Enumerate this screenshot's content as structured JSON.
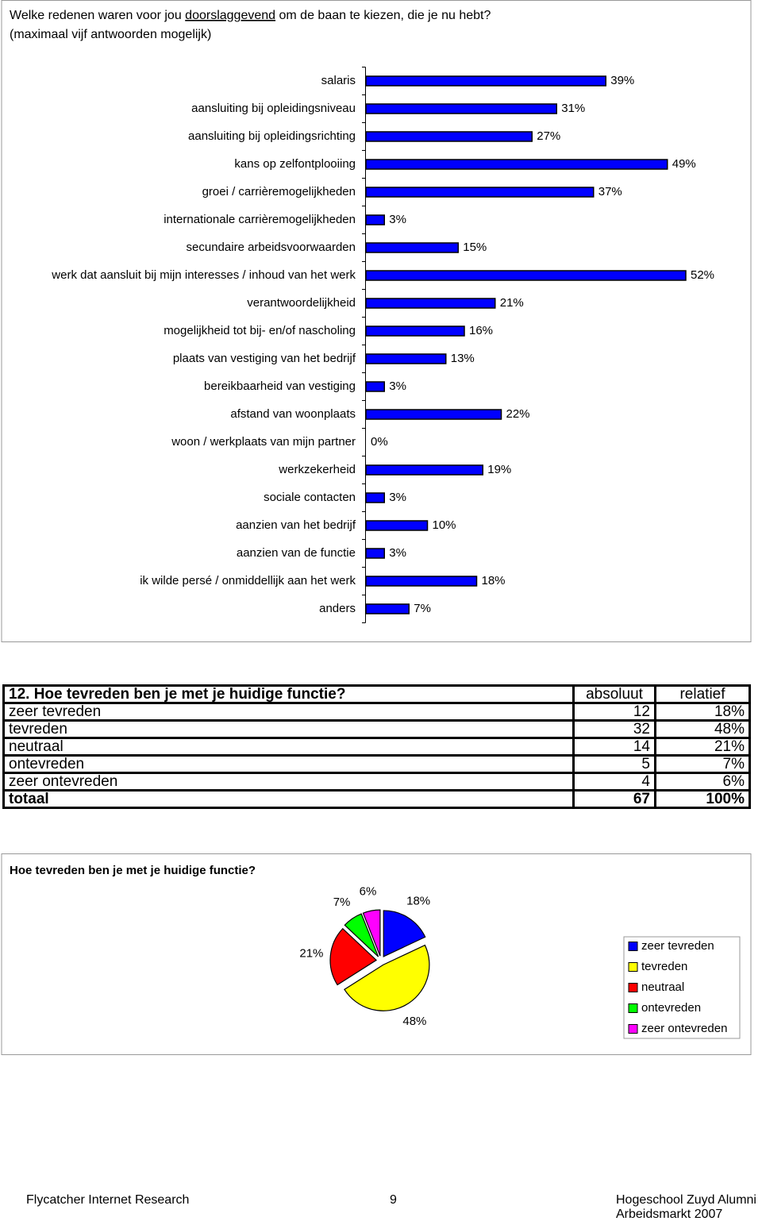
{
  "chart_data": [
    {
      "type": "bar",
      "title": [
        "Welke redenen waren voor jou",
        "doorslaggevend",
        "om de baan te kiezen, die je nu hebt?"
      ],
      "subtitle": "(maximaal vijf antwoorden mogelijk)",
      "categories": [
        "salaris",
        "aansluiting bij opleidingsniveau",
        "aansluiting bij opleidingsrichting",
        "kans op zelfontplooiing",
        "groei / carrièremogelijkheden",
        "internationale carrièremogelijkheden",
        "secundaire arbeidsvoorwaarden",
        "werk dat aansluit bij mijn interesses / inhoud van het werk",
        "verantwoordelijkheid",
        "mogelijkheid tot bij- en/of nascholing",
        "plaats van vestiging van het bedrijf",
        "bereikbaarheid van vestiging",
        "afstand van woonplaats",
        "woon / werkplaats van mijn partner",
        "werkzekerheid",
        "sociale contacten",
        "aanzien van het bedrijf",
        "aanzien van de functie",
        "ik wilde persé / onmiddellijk aan het werk",
        "anders"
      ],
      "values": [
        39,
        31,
        27,
        49,
        37,
        3,
        15,
        52,
        21,
        16,
        13,
        3,
        22,
        0,
        19,
        3,
        10,
        3,
        18,
        7
      ],
      "value_labels": [
        "39%",
        "31%",
        "27%",
        "49%",
        "37%",
        "3%",
        "15%",
        "52%",
        "21%",
        "16%",
        "13%",
        "3%",
        "22%",
        "0%",
        "19%",
        "3%",
        "10%",
        "3%",
        "18%",
        "7%"
      ],
      "color": "#0000ff"
    },
    {
      "type": "pie",
      "title": "Hoe tevreden ben je met je huidige functie?",
      "categories": [
        "zeer tevreden",
        "tevreden",
        "neutraal",
        "ontevreden",
        "zeer ontevreden"
      ],
      "values": [
        18,
        48,
        21,
        7,
        6
      ],
      "value_labels": [
        "18%",
        "48%",
        "21%",
        "7%",
        "6%"
      ],
      "colors": [
        "#0000ff",
        "#ffff00",
        "#ff0000",
        "#00ff00",
        "#ff00ff"
      ],
      "legend": "right"
    }
  ],
  "table": {
    "header": [
      "12. Hoe tevreden ben je met je huidige functie?",
      "absoluut",
      "relatief"
    ],
    "rows": [
      [
        "zeer tevreden",
        "12",
        "18%"
      ],
      [
        "tevreden",
        "32",
        "48%"
      ],
      [
        "neutraal",
        "14",
        "21%"
      ],
      [
        "ontevreden",
        "5",
        "7%"
      ],
      [
        "zeer ontevreden",
        "4",
        "6%"
      ],
      [
        "totaal",
        "67",
        "100%"
      ]
    ]
  },
  "footer": {
    "left": "Flycatcher Internet Research",
    "page": "9",
    "right": [
      "Hogeschool Zuyd Alumni",
      "Arbeidsmarkt 2007"
    ]
  }
}
